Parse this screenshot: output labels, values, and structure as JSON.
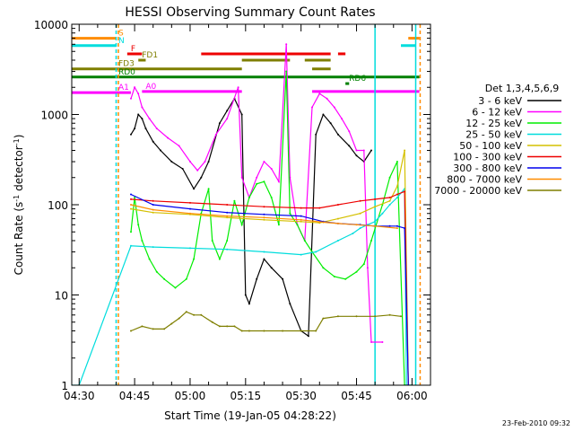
{
  "chart_data": {
    "type": "line",
    "title": "HESSI Observing Summary Count Rates",
    "xlabel": "Start Time (19-Jan-05 04:28:22)",
    "ylabel_main": "Count Rate (s",
    "ylabel_exp": "-1",
    "ylabel_mid": " detector",
    "ylabel_close": ")",
    "ylog": true,
    "ylim": [
      1,
      10000
    ],
    "xlim_minutes_from_0430": [
      -2,
      95
    ],
    "x_ticks": [
      {
        "label": "04:30",
        "t": 0
      },
      {
        "label": "04:45",
        "t": 15
      },
      {
        "label": "05:00",
        "t": 30
      },
      {
        "label": "05:15",
        "t": 45
      },
      {
        "label": "05:30",
        "t": 60
      },
      {
        "label": "05:45",
        "t": 75
      },
      {
        "label": "06:00",
        "t": 90
      }
    ],
    "y_ticks": [
      {
        "label": "1",
        "v": 1
      },
      {
        "label": "10",
        "v": 10
      },
      {
        "label": "100",
        "v": 100
      },
      {
        "label": "1000",
        "v": 1000
      },
      {
        "label": "10000",
        "v": 10000
      }
    ],
    "legend": {
      "title": "Det 1,3,4,5,6,9",
      "placement": "right",
      "entries": [
        {
          "label": "3 - 6 keV",
          "color": "#000000"
        },
        {
          "label": "6 - 12 keV",
          "color": "#ff00ff"
        },
        {
          "label": "12 - 25 keV",
          "color": "#00ee00"
        },
        {
          "label": "25 - 50 keV",
          "color": "#00dddd"
        },
        {
          "label": "50 - 100 keV",
          "color": "#d4c000"
        },
        {
          "label": "100 - 300 keV",
          "color": "#ee0000"
        },
        {
          "label": "300 - 800 keV",
          "color": "#0000ee"
        },
        {
          "label": "800 - 7000 keV",
          "color": "#ff8c00"
        },
        {
          "label": "7000 - 20000 keV",
          "color": "#7f7f00"
        }
      ]
    },
    "series": [
      {
        "name": "3 - 6 keV",
        "color": "#000000",
        "points": [
          [
            14,
            600
          ],
          [
            15,
            700
          ],
          [
            16,
            1000
          ],
          [
            17,
            900
          ],
          [
            18,
            700
          ],
          [
            20,
            500
          ],
          [
            22,
            400
          ],
          [
            25,
            300
          ],
          [
            28,
            250
          ],
          [
            31,
            150
          ],
          [
            33,
            200
          ],
          [
            35,
            300
          ],
          [
            38,
            800
          ],
          [
            40,
            1100
          ],
          [
            42,
            1500
          ],
          [
            44,
            1000
          ],
          [
            45,
            10
          ],
          [
            46,
            8
          ],
          [
            48,
            15
          ],
          [
            50,
            25
          ],
          [
            52,
            20
          ],
          [
            55,
            15
          ],
          [
            57,
            8
          ],
          [
            60,
            4
          ],
          [
            62,
            3.5
          ],
          [
            64,
            600
          ],
          [
            66,
            1000
          ],
          [
            68,
            800
          ],
          [
            70,
            600
          ],
          [
            73,
            450
          ],
          [
            75,
            350
          ],
          [
            77,
            300
          ],
          [
            79,
            400
          ]
        ]
      },
      {
        "name": "6 - 12 keV",
        "color": "#ff00ff",
        "points": [
          [
            14,
            1500
          ],
          [
            15,
            2000
          ],
          [
            16,
            1700
          ],
          [
            17,
            1200
          ],
          [
            19,
            900
          ],
          [
            21,
            700
          ],
          [
            24,
            550
          ],
          [
            27,
            450
          ],
          [
            30,
            300
          ],
          [
            32,
            240
          ],
          [
            34,
            300
          ],
          [
            37,
            600
          ],
          [
            40,
            900
          ],
          [
            43,
            2000
          ],
          [
            44,
            200
          ],
          [
            46,
            120
          ],
          [
            48,
            200
          ],
          [
            50,
            300
          ],
          [
            52,
            250
          ],
          [
            54,
            180
          ],
          [
            56,
            6000
          ],
          [
            57,
            200
          ],
          [
            59,
            60
          ],
          [
            61,
            40
          ],
          [
            63,
            1200
          ],
          [
            65,
            1700
          ],
          [
            67,
            1500
          ],
          [
            69,
            1200
          ],
          [
            71,
            900
          ],
          [
            73,
            650
          ],
          [
            75,
            400
          ],
          [
            77,
            400
          ],
          [
            78,
            20
          ],
          [
            79,
            3
          ],
          [
            82,
            3
          ]
        ]
      },
      {
        "name": "12 - 25 keV",
        "color": "#00ee00",
        "points": [
          [
            14,
            50
          ],
          [
            15,
            120
          ],
          [
            16,
            60
          ],
          [
            17,
            40
          ],
          [
            19,
            25
          ],
          [
            21,
            18
          ],
          [
            23,
            15
          ],
          [
            26,
            12
          ],
          [
            29,
            15
          ],
          [
            31,
            25
          ],
          [
            33,
            80
          ],
          [
            35,
            150
          ],
          [
            36,
            40
          ],
          [
            38,
            25
          ],
          [
            40,
            40
          ],
          [
            42,
            110
          ],
          [
            44,
            60
          ],
          [
            46,
            120
          ],
          [
            48,
            170
          ],
          [
            50,
            180
          ],
          [
            52,
            120
          ],
          [
            54,
            60
          ],
          [
            56,
            3000
          ],
          [
            57,
            80
          ],
          [
            59,
            60
          ],
          [
            61,
            40
          ],
          [
            63,
            30
          ],
          [
            66,
            20
          ],
          [
            69,
            16
          ],
          [
            72,
            15
          ],
          [
            75,
            18
          ],
          [
            77,
            22
          ],
          [
            79,
            40
          ],
          [
            82,
            100
          ],
          [
            84,
            200
          ],
          [
            86,
            300
          ],
          [
            88,
            1
          ],
          [
            90,
            1
          ]
        ]
      },
      {
        "name": "25 - 50 keV",
        "color": "#00dddd",
        "points": [
          [
            -2,
            1
          ],
          [
            0,
            1
          ],
          [
            14,
            35
          ],
          [
            20,
            34
          ],
          [
            30,
            33
          ],
          [
            40,
            32
          ],
          [
            50,
            30
          ],
          [
            60,
            28
          ],
          [
            64,
            30
          ],
          [
            70,
            40
          ],
          [
            74,
            48
          ],
          [
            76,
            55
          ],
          [
            78,
            60
          ],
          [
            80,
            65
          ],
          [
            82,
            80
          ],
          [
            84,
            100
          ],
          [
            86,
            120
          ],
          [
            88,
            150
          ],
          [
            88.5,
            1
          ],
          [
            90,
            1
          ]
        ]
      },
      {
        "name": "50 - 100 keV",
        "color": "#d4c000",
        "points": [
          [
            14,
            90
          ],
          [
            20,
            82
          ],
          [
            30,
            78
          ],
          [
            40,
            72
          ],
          [
            50,
            68
          ],
          [
            60,
            65
          ],
          [
            65,
            63
          ],
          [
            70,
            70
          ],
          [
            76,
            80
          ],
          [
            80,
            95
          ],
          [
            84,
            110
          ],
          [
            86,
            160
          ],
          [
            88,
            400
          ],
          [
            89,
            1
          ]
        ]
      },
      {
        "name": "100 - 300 keV",
        "color": "#ee0000",
        "points": [
          [
            14,
            115
          ],
          [
            20,
            110
          ],
          [
            30,
            105
          ],
          [
            40,
            100
          ],
          [
            50,
            95
          ],
          [
            60,
            92
          ],
          [
            65,
            92
          ],
          [
            70,
            100
          ],
          [
            76,
            110
          ],
          [
            80,
            115
          ],
          [
            84,
            120
          ],
          [
            86,
            130
          ],
          [
            88,
            140
          ],
          [
            89,
            1
          ]
        ]
      },
      {
        "name": "300 - 800 keV",
        "color": "#0000ee",
        "points": [
          [
            14,
            130
          ],
          [
            20,
            100
          ],
          [
            30,
            90
          ],
          [
            40,
            82
          ],
          [
            50,
            78
          ],
          [
            60,
            75
          ],
          [
            66,
            65
          ],
          [
            70,
            62
          ],
          [
            76,
            60
          ],
          [
            80,
            58
          ],
          [
            84,
            58
          ],
          [
            86,
            58
          ],
          [
            88,
            55
          ],
          [
            89,
            1
          ]
        ]
      },
      {
        "name": "800 - 7000 keV",
        "color": "#ff8c00",
        "points": [
          [
            14,
            100
          ],
          [
            20,
            88
          ],
          [
            30,
            80
          ],
          [
            40,
            75
          ],
          [
            50,
            72
          ],
          [
            60,
            68
          ],
          [
            66,
            64
          ],
          [
            70,
            62
          ],
          [
            75,
            60
          ],
          [
            80,
            58
          ],
          [
            86,
            55
          ]
        ]
      },
      {
        "name": "7000 - 20000 keV",
        "color": "#7f7f00",
        "points": [
          [
            14,
            4
          ],
          [
            17,
            4.5
          ],
          [
            20,
            4.2
          ],
          [
            23,
            4.2
          ],
          [
            25,
            4.8
          ],
          [
            27,
            5.5
          ],
          [
            29,
            6.5
          ],
          [
            31,
            6
          ],
          [
            33,
            6
          ],
          [
            36,
            5
          ],
          [
            38,
            4.5
          ],
          [
            40,
            4.5
          ],
          [
            42,
            4.5
          ],
          [
            44,
            4
          ],
          [
            46,
            4
          ],
          [
            50,
            4
          ],
          [
            55,
            4
          ],
          [
            60,
            4
          ],
          [
            64,
            4
          ],
          [
            66,
            5.5
          ],
          [
            70,
            5.8
          ],
          [
            75,
            5.8
          ],
          [
            80,
            5.8
          ],
          [
            84,
            6
          ],
          [
            87,
            5.8
          ]
        ]
      }
    ],
    "flags": [
      {
        "label": "S",
        "color": "#ff8c00",
        "v": 7000,
        "segments": [
          [
            -2,
            10
          ],
          [
            89,
            92
          ]
        ]
      },
      {
        "label": "N",
        "color": "#00dddd",
        "v": 5800,
        "segments": [
          [
            -2,
            10
          ],
          [
            87,
            91
          ]
        ]
      },
      {
        "label": "F",
        "color": "#ee0000",
        "v": 4700,
        "segments": [
          [
            13,
            17
          ],
          [
            33,
            68
          ],
          [
            70,
            72
          ]
        ]
      },
      {
        "label": "FD1",
        "color": "#7f7f00",
        "v": 4000,
        "segments": [
          [
            16,
            18
          ],
          [
            44,
            57
          ],
          [
            61,
            68
          ]
        ]
      },
      {
        "label": "FD3",
        "color": "#7f7f00",
        "v": 3200,
        "segments": [
          [
            -2,
            44
          ],
          [
            63,
            68
          ]
        ]
      },
      {
        "label": "RD0",
        "color": "#008000",
        "v": 2600,
        "segments": [
          [
            -2,
            92
          ]
        ]
      },
      {
        "label": "RD6",
        "color": "#008000",
        "v": 2200,
        "segments": [
          [
            72,
            73
          ]
        ]
      },
      {
        "label": "A0",
        "color": "#ff00ff",
        "v": 1800,
        "segments": [
          [
            17,
            44
          ],
          [
            63,
            92
          ]
        ]
      },
      {
        "label": "A1",
        "color": "#ff00ff",
        "v": 1750,
        "segments": [
          [
            -2,
            14
          ]
        ]
      }
    ],
    "vlines": [
      {
        "t": 10,
        "color": "#00dddd",
        "dashed": true
      },
      {
        "t": 10.6,
        "color": "#ff8c00",
        "dashed": true
      },
      {
        "t": 80,
        "color": "#00dddd",
        "dashed": false
      },
      {
        "t": 91,
        "color": "#00dddd",
        "dashed": false
      },
      {
        "t": 92.2,
        "color": "#ff8c00",
        "dashed": true
      }
    ],
    "footer_date": "23-Feb-2010 09:32"
  }
}
